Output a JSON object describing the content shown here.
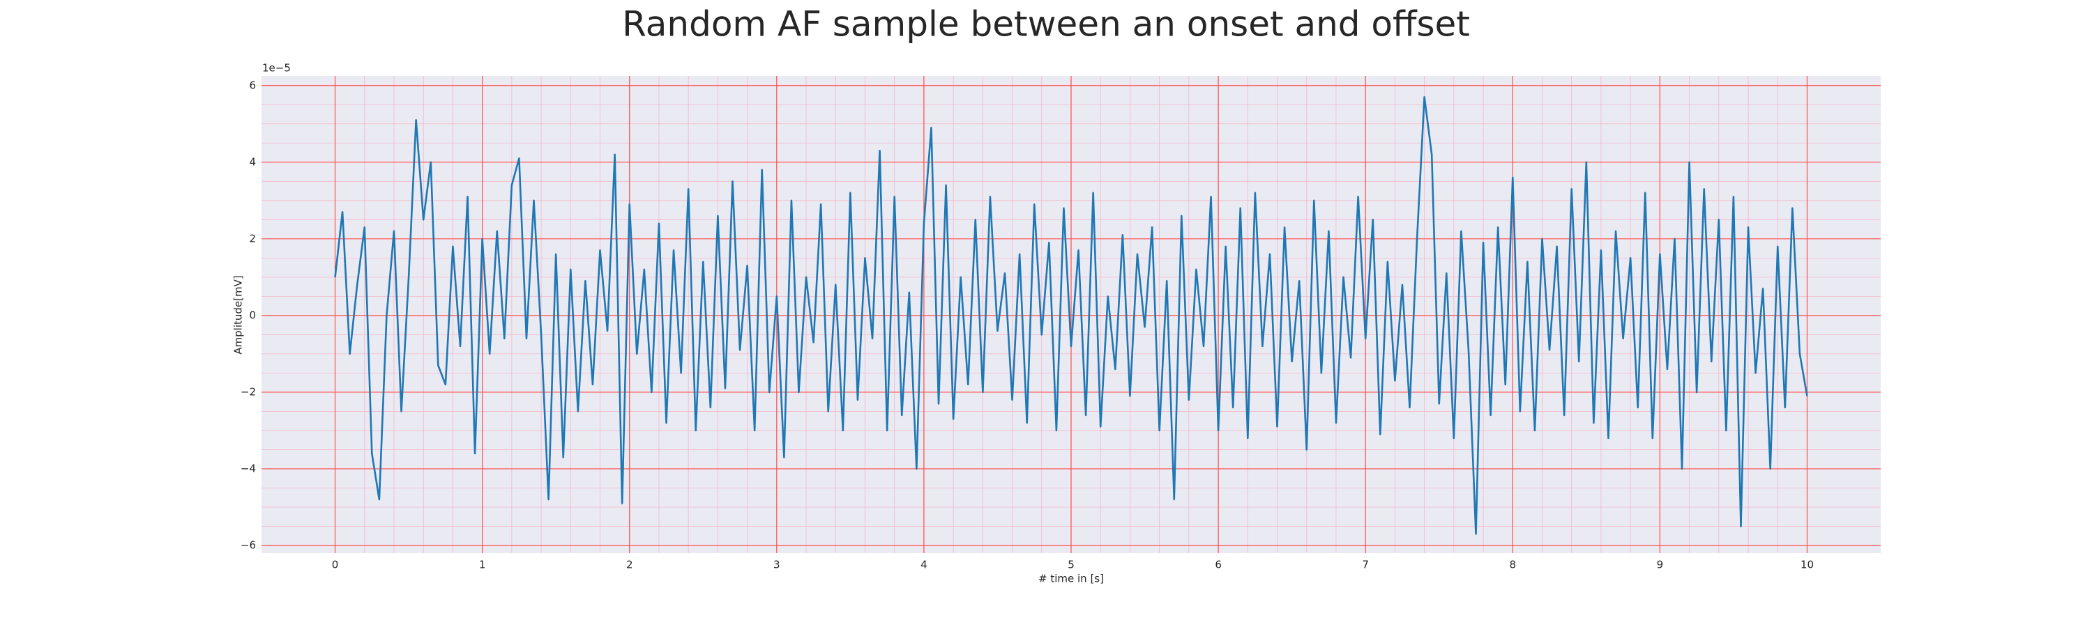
{
  "chart_data": {
    "type": "line",
    "title": "Random AF sample between an onset and offset",
    "xlabel": "# time in [s]",
    "ylabel": "Amplitude[mV]",
    "offset_label": "1e−5",
    "xlim": [
      -0.5,
      10.5
    ],
    "ylim": [
      -6.2,
      6.25
    ],
    "xticks": [
      0,
      1,
      2,
      3,
      4,
      5,
      6,
      7,
      8,
      9,
      10
    ],
    "yticks": [
      {
        "value": -6,
        "label": "−6"
      },
      {
        "value": -4,
        "label": "−4"
      },
      {
        "value": -2,
        "label": "−2"
      },
      0,
      2,
      4,
      6
    ],
    "grid": true,
    "grid_color": "#ff4d4d",
    "minor_grid_color": "#f4b6c8",
    "background": "#eaeaf2",
    "x": [
      0,
      0.05,
      0.1,
      0.15,
      0.2,
      0.25,
      0.3,
      0.35,
      0.4,
      0.45,
      0.5,
      0.55,
      0.6,
      0.65,
      0.7,
      0.75,
      0.8,
      0.85,
      0.9,
      0.95,
      1,
      1.05,
      1.1,
      1.15,
      1.2,
      1.25,
      1.3,
      1.35,
      1.4,
      1.45,
      1.5,
      1.55,
      1.6,
      1.65,
      1.7,
      1.75,
      1.8,
      1.85,
      1.9,
      1.95,
      2,
      2.05,
      2.1,
      2.15,
      2.2,
      2.25,
      2.3,
      2.35,
      2.4,
      2.45,
      2.5,
      2.55,
      2.6,
      2.65,
      2.7,
      2.75,
      2.8,
      2.85,
      2.9,
      2.95,
      3,
      3.05,
      3.1,
      3.15,
      3.2,
      3.25,
      3.3,
      3.35,
      3.4,
      3.45,
      3.5,
      3.55,
      3.6,
      3.65,
      3.7,
      3.75,
      3.8,
      3.85,
      3.9,
      3.95,
      4,
      4.05,
      4.1,
      4.15,
      4.2,
      4.25,
      4.3,
      4.35,
      4.4,
      4.45,
      4.5,
      4.55,
      4.6,
      4.65,
      4.7,
      4.75,
      4.8,
      4.85,
      4.9,
      4.95,
      5,
      5.05,
      5.1,
      5.15,
      5.2,
      5.25,
      5.3,
      5.35,
      5.4,
      5.45,
      5.5,
      5.55,
      5.6,
      5.65,
      5.7,
      5.75,
      5.8,
      5.85,
      5.9,
      5.95,
      6,
      6.05,
      6.1,
      6.15,
      6.2,
      6.25,
      6.3,
      6.35,
      6.4,
      6.45,
      6.5,
      6.55,
      6.6,
      6.65,
      6.7,
      6.75,
      6.8,
      6.85,
      6.9,
      6.95,
      7,
      7.05,
      7.1,
      7.15,
      7.2,
      7.25,
      7.3,
      7.35,
      7.4,
      7.45,
      7.5,
      7.55,
      7.6,
      7.65,
      7.7,
      7.75,
      7.8,
      7.85,
      7.9,
      7.95,
      8,
      8.05,
      8.1,
      8.15,
      8.2,
      8.25,
      8.3,
      8.35,
      8.4,
      8.45,
      8.5,
      8.55,
      8.6,
      8.65,
      8.7,
      8.75,
      8.8,
      8.85,
      8.9,
      8.95,
      9,
      9.05,
      9.1,
      9.15,
      9.2,
      9.25,
      9.3,
      9.35,
      9.4,
      9.45,
      9.5,
      9.55,
      9.6,
      9.65,
      9.7,
      9.75,
      9.8,
      9.85,
      9.9,
      9.95,
      10
    ],
    "series": [
      {
        "color": "#1f77b4",
        "values": [
          1.0,
          2.7,
          -1.0,
          0.8,
          2.3,
          -3.6,
          -4.8,
          0.0,
          2.2,
          -2.5,
          1.0,
          5.1,
          2.5,
          4.0,
          -1.3,
          -1.8,
          1.8,
          -0.8,
          3.1,
          -3.6,
          2.0,
          -1.0,
          2.2,
          -0.6,
          3.4,
          4.1,
          -0.6,
          3.0,
          -0.5,
          -4.8,
          1.6,
          -3.7,
          1.2,
          -2.5,
          0.9,
          -1.8,
          1.7,
          -0.4,
          4.2,
          -4.9,
          2.9,
          -1.0,
          1.2,
          -2.0,
          2.4,
          -2.8,
          1.7,
          -1.5,
          3.3,
          -3.0,
          1.4,
          -2.4,
          2.6,
          -1.9,
          3.5,
          -0.9,
          1.3,
          -3.0,
          3.8,
          -2.0,
          0.5,
          -3.7,
          3.0,
          -2.0,
          1.0,
          -0.7,
          2.9,
          -2.5,
          0.8,
          -3.0,
          3.2,
          -2.2,
          1.5,
          -0.6,
          4.3,
          -3.0,
          3.1,
          -2.6,
          0.6,
          -4.0,
          2.4,
          4.9,
          -2.3,
          3.4,
          -2.7,
          1.0,
          -1.8,
          2.5,
          -2.0,
          3.1,
          -0.4,
          1.1,
          -2.2,
          1.6,
          -2.8,
          2.9,
          -0.5,
          1.9,
          -3.0,
          2.8,
          -0.8,
          1.7,
          -2.6,
          3.2,
          -2.9,
          0.5,
          -1.4,
          2.1,
          -2.1,
          1.6,
          -0.3,
          2.3,
          -3.0,
          0.9,
          -4.8,
          2.6,
          -2.2,
          1.2,
          -0.8,
          3.1,
          -3.0,
          1.8,
          -2.4,
          2.8,
          -3.2,
          3.2,
          -0.8,
          1.6,
          -2.9,
          2.3,
          -1.2,
          0.9,
          -3.5,
          3.0,
          -1.5,
          2.2,
          -2.8,
          1.0,
          -1.1,
          3.1,
          -0.6,
          2.5,
          -3.1,
          1.4,
          -1.7,
          0.8,
          -2.4,
          2.0,
          5.7,
          4.2,
          -2.3,
          1.1,
          -3.2,
          2.2,
          -0.9,
          -5.7,
          1.9,
          -2.6,
          2.3,
          -1.8,
          3.6,
          -2.5,
          1.4,
          -3.0,
          2.0,
          -0.9,
          1.8,
          -2.6,
          3.3,
          -1.2,
          4.0,
          -2.8,
          1.7,
          -3.2,
          2.2,
          -0.6,
          1.5,
          -2.4,
          3.2,
          -3.2,
          1.6,
          -1.4,
          2.0,
          -4.0,
          4.0,
          -2.0,
          3.3,
          -1.2,
          2.5,
          -3.0,
          3.1,
          -5.5,
          2.3,
          -1.5,
          0.7,
          -4.0,
          1.8,
          -2.4,
          2.8,
          -1.0,
          -2.1
        ]
      }
    ]
  }
}
